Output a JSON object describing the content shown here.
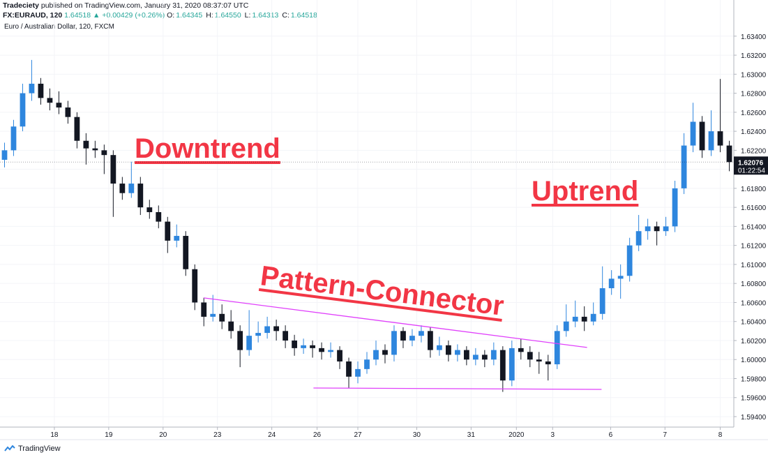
{
  "header": {
    "publisher": "Tradeciety",
    "published": "published on TradingView.com, January 31, 2020 08:37:07 UTC",
    "symbol": "FX:EURAUD, 120",
    "price": "1.64518",
    "change": "▲ +0.00429 (+0.26%)",
    "ohlc": [
      {
        "key": "O:",
        "value": "1.64345"
      },
      {
        "key": "H:",
        "value": "1.64550"
      },
      {
        "key": "L:",
        "value": "1.64313"
      },
      {
        "key": "C:",
        "value": "1.64518"
      }
    ]
  },
  "footer": "TradingView",
  "chart_data": {
    "type": "candlestick",
    "title": "Euro / Australian Dollar, 120, FXCM",
    "up_color": "#2e86de",
    "down_color": "#131722",
    "grid": true,
    "xlim": [
      0,
      81
    ],
    "ylim": [
      1.5929,
      1.6356
    ],
    "xticks": [
      {
        "value": 6,
        "label": "18"
      },
      {
        "value": 12,
        "label": "19"
      },
      {
        "value": 18,
        "label": "20"
      },
      {
        "value": 24,
        "label": "23"
      },
      {
        "value": 30,
        "label": "24"
      },
      {
        "value": 35,
        "label": "26"
      },
      {
        "value": 39.5,
        "label": "27"
      },
      {
        "value": 46,
        "label": "30"
      },
      {
        "value": 52,
        "label": "31"
      },
      {
        "value": 57,
        "label": "2020"
      },
      {
        "value": 61,
        "label": "3"
      },
      {
        "value": 67.4,
        "label": "6"
      },
      {
        "value": 73.4,
        "label": "7"
      },
      {
        "value": 79.5,
        "label": "8"
      }
    ],
    "yticks": [
      {
        "value": 1.594,
        "label": "1.59400"
      },
      {
        "value": 1.596,
        "label": "1.59600"
      },
      {
        "value": 1.598,
        "label": "1.59800"
      },
      {
        "value": 1.6,
        "label": "1.60000"
      },
      {
        "value": 1.602,
        "label": "1.60200"
      },
      {
        "value": 1.604,
        "label": "1.60400"
      },
      {
        "value": 1.606,
        "label": "1.60600"
      },
      {
        "value": 1.608,
        "label": "1.60800"
      },
      {
        "value": 1.61,
        "label": "1.61000"
      },
      {
        "value": 1.612,
        "label": "1.61200"
      },
      {
        "value": 1.614,
        "label": "1.61400"
      },
      {
        "value": 1.616,
        "label": "1.61600"
      },
      {
        "value": 1.618,
        "label": "1.61800"
      },
      {
        "value": 1.62,
        "label": "1.62000"
      },
      {
        "value": 1.622,
        "label": "1.62200"
      },
      {
        "value": 1.624,
        "label": "1.62400"
      },
      {
        "value": 1.626,
        "label": "1.62600"
      },
      {
        "value": 1.628,
        "label": "1.62800"
      },
      {
        "value": 1.63,
        "label": "1.63000"
      },
      {
        "value": 1.632,
        "label": "1.63200"
      },
      {
        "value": 1.634,
        "label": "1.63400"
      }
    ],
    "open": [
      1.621,
      1.622,
      1.6245,
      1.628,
      1.629,
      1.6275,
      1.627,
      1.6265,
      1.6255,
      1.623,
      1.6222,
      1.622,
      1.6215,
      1.6185,
      1.6175,
      1.6185,
      1.616,
      1.6155,
      1.6145,
      1.6125,
      1.613,
      1.6095,
      1.606,
      1.6045,
      1.6048,
      1.604,
      1.603,
      1.601,
      1.6025,
      1.6028,
      1.6035,
      1.603,
      1.602,
      1.6012,
      1.6015,
      1.6012,
      1.6008,
      1.601,
      1.5998,
      1.5982,
      1.599,
      1.6,
      1.601,
      1.6005,
      1.603,
      1.602,
      1.6025,
      1.603,
      1.601,
      1.6015,
      1.6005,
      1.601,
      1.6,
      1.6005,
      1.6,
      1.601,
      1.5978,
      1.6012,
      1.6008,
      1.6,
      1.5998,
      1.5995,
      1.603,
      1.604,
      1.6045,
      1.604,
      1.6048,
      1.6075,
      1.6085,
      1.6088,
      1.612,
      1.6135,
      1.614,
      1.6135,
      1.614,
      1.618,
      1.6225,
      1.625,
      1.622,
      1.624,
      1.6225
    ],
    "high": [
      1.6228,
      1.6252,
      1.629,
      1.6315,
      1.6296,
      1.6285,
      1.6282,
      1.6272,
      1.626,
      1.6238,
      1.623,
      1.6226,
      1.622,
      1.6192,
      1.6208,
      1.6192,
      1.6168,
      1.6162,
      1.615,
      1.6142,
      1.6135,
      1.61,
      1.6065,
      1.6068,
      1.6058,
      1.6052,
      1.6036,
      1.6052,
      1.604,
      1.6045,
      1.6042,
      1.6036,
      1.6026,
      1.6022,
      1.602,
      1.6018,
      1.6018,
      1.6014,
      1.6002,
      1.5998,
      1.6008,
      1.602,
      1.6016,
      1.6036,
      1.6034,
      1.6032,
      1.6036,
      1.6034,
      1.6024,
      1.602,
      1.6016,
      1.6014,
      1.6012,
      1.601,
      1.6018,
      1.6014,
      1.602,
      1.6022,
      1.6014,
      1.6008,
      1.6005,
      1.6036,
      1.6058,
      1.6062,
      1.6056,
      1.606,
      1.6098,
      1.6094,
      1.61,
      1.6128,
      1.6152,
      1.6148,
      1.6145,
      1.615,
      1.6188,
      1.6238,
      1.627,
      1.6256,
      1.6262,
      1.6295,
      1.623
    ],
    "low": [
      1.6202,
      1.6214,
      1.624,
      1.6272,
      1.6268,
      1.6262,
      1.6258,
      1.6248,
      1.6222,
      1.6205,
      1.6212,
      1.6195,
      1.615,
      1.6168,
      1.617,
      1.6152,
      1.6148,
      1.6138,
      1.6112,
      1.6118,
      1.6088,
      1.6052,
      1.6035,
      1.604,
      1.6032,
      1.6022,
      1.5992,
      1.6004,
      1.6018,
      1.6022,
      1.602,
      1.6012,
      1.6004,
      1.6006,
      1.6002,
      1.6,
      1.6002,
      1.599,
      1.597,
      1.5975,
      1.5985,
      1.5994,
      1.5996,
      1.5998,
      1.6012,
      1.6014,
      1.6018,
      1.6002,
      1.6004,
      1.5998,
      1.5998,
      1.5994,
      1.5994,
      1.5992,
      1.5994,
      1.5966,
      1.5972,
      1.6,
      1.5992,
      1.5985,
      1.5978,
      1.599,
      1.6024,
      1.6034,
      1.603,
      1.6036,
      1.6042,
      1.6068,
      1.6064,
      1.6082,
      1.6114,
      1.6126,
      1.612,
      1.613,
      1.6134,
      1.6174,
      1.6218,
      1.6212,
      1.6214,
      1.6218,
      1.6198
    ],
    "close": [
      1.622,
      1.6245,
      1.628,
      1.629,
      1.6275,
      1.627,
      1.6265,
      1.6255,
      1.623,
      1.6222,
      1.622,
      1.6215,
      1.6185,
      1.6175,
      1.6185,
      1.616,
      1.6155,
      1.6145,
      1.6125,
      1.613,
      1.6095,
      1.606,
      1.6045,
      1.6048,
      1.604,
      1.603,
      1.601,
      1.6025,
      1.6028,
      1.6035,
      1.603,
      1.602,
      1.6012,
      1.6015,
      1.6012,
      1.6008,
      1.601,
      1.5998,
      1.5982,
      1.599,
      1.6,
      1.601,
      1.6005,
      1.603,
      1.602,
      1.6025,
      1.603,
      1.601,
      1.6015,
      1.6005,
      1.601,
      1.6,
      1.6005,
      1.6,
      1.601,
      1.5978,
      1.6012,
      1.6008,
      1.6,
      1.5998,
      1.5995,
      1.603,
      1.604,
      1.6045,
      1.604,
      1.6048,
      1.6075,
      1.6085,
      1.6088,
      1.612,
      1.6135,
      1.614,
      1.6135,
      1.614,
      1.618,
      1.6225,
      1.625,
      1.622,
      1.624,
      1.6225,
      1.62076
    ],
    "trendlines": [
      {
        "x": [
          22.5,
          64.8
        ],
        "y": [
          1.60648,
          1.60127
        ],
        "color": "#e040fb"
      },
      {
        "x": [
          34.6,
          66.4
        ],
        "y": [
          1.59701,
          1.59686
        ],
        "color": "#e040fb"
      }
    ],
    "annotations": [
      "Downtrend",
      "Uptrend",
      "Pattern-Connector"
    ],
    "annotation_color": "#f23645",
    "last_price": 1.62076,
    "countdown": "01:22:54"
  }
}
